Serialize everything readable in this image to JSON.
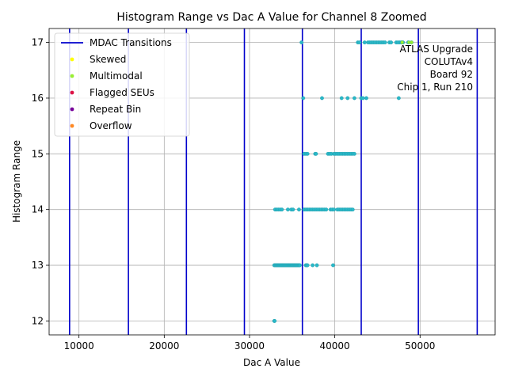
{
  "chart_data": {
    "type": "scatter",
    "title": "Histogram Range vs Dac A Value for Channel 8 Zoomed",
    "xlabel": "Dac A Value",
    "ylabel": "Histogram Range",
    "xlim": [
      6500,
      58800
    ],
    "ylim": [
      11.75,
      17.25
    ],
    "xticks": [
      10000,
      20000,
      30000,
      40000,
      50000
    ],
    "xtick_labels": [
      "10000",
      "20000",
      "30000",
      "40000",
      "50000"
    ],
    "yticks": [
      12,
      13,
      14,
      15,
      16,
      17
    ],
    "ytick_labels": [
      "12",
      "13",
      "14",
      "15",
      "16",
      "17"
    ],
    "grid": true,
    "legend_placement": "top-left",
    "mdac_transitions": {
      "name": "MDAC Transitions",
      "color": "#0000cc",
      "x": [
        8900,
        15800,
        22600,
        29400,
        36200,
        43100,
        49800,
        56700
      ]
    },
    "series": [
      {
        "name": "Data",
        "color": "#2ab8c8",
        "points": [
          [
            32900,
            12
          ],
          [
            32950,
            12
          ],
          [
            32900,
            13
          ],
          [
            33000,
            13
          ],
          [
            33100,
            13
          ],
          [
            33200,
            13
          ],
          [
            33300,
            13
          ],
          [
            33400,
            13
          ],
          [
            33500,
            13
          ],
          [
            33600,
            13
          ],
          [
            33700,
            13
          ],
          [
            33800,
            13
          ],
          [
            33900,
            13
          ],
          [
            34000,
            13
          ],
          [
            34100,
            13
          ],
          [
            34200,
            13
          ],
          [
            34300,
            13
          ],
          [
            34400,
            13
          ],
          [
            34500,
            13
          ],
          [
            34600,
            13
          ],
          [
            34700,
            13
          ],
          [
            34800,
            13
          ],
          [
            34900,
            13
          ],
          [
            35000,
            13
          ],
          [
            35100,
            13
          ],
          [
            35200,
            13
          ],
          [
            35300,
            13
          ],
          [
            35400,
            13
          ],
          [
            35500,
            13
          ],
          [
            35600,
            13
          ],
          [
            35700,
            13
          ],
          [
            35800,
            13
          ],
          [
            35900,
            13
          ],
          [
            36600,
            13
          ],
          [
            36700,
            13
          ],
          [
            36800,
            13
          ],
          [
            37400,
            13
          ],
          [
            37900,
            13
          ],
          [
            39800,
            13
          ],
          [
            33000,
            14
          ],
          [
            33200,
            14
          ],
          [
            33400,
            14
          ],
          [
            33600,
            14
          ],
          [
            33800,
            14
          ],
          [
            34500,
            14
          ],
          [
            34900,
            14
          ],
          [
            35100,
            14
          ],
          [
            35800,
            14
          ],
          [
            36400,
            14
          ],
          [
            36600,
            14
          ],
          [
            36800,
            14
          ],
          [
            37000,
            14
          ],
          [
            37200,
            14
          ],
          [
            37400,
            14
          ],
          [
            37600,
            14
          ],
          [
            37800,
            14
          ],
          [
            38000,
            14
          ],
          [
            38200,
            14
          ],
          [
            38400,
            14
          ],
          [
            38600,
            14
          ],
          [
            38800,
            14
          ],
          [
            39000,
            14
          ],
          [
            39500,
            14
          ],
          [
            39700,
            14
          ],
          [
            39900,
            14
          ],
          [
            40300,
            14
          ],
          [
            40500,
            14
          ],
          [
            40700,
            14
          ],
          [
            40900,
            14
          ],
          [
            41100,
            14
          ],
          [
            41300,
            14
          ],
          [
            41500,
            14
          ],
          [
            41700,
            14
          ],
          [
            41900,
            14
          ],
          [
            42100,
            14
          ],
          [
            36400,
            15
          ],
          [
            36600,
            15
          ],
          [
            36800,
            15
          ],
          [
            37700,
            15
          ],
          [
            37800,
            15
          ],
          [
            39200,
            15
          ],
          [
            39400,
            15
          ],
          [
            39600,
            15
          ],
          [
            39900,
            15
          ],
          [
            40100,
            15
          ],
          [
            40300,
            15
          ],
          [
            40500,
            15
          ],
          [
            40700,
            15
          ],
          [
            40900,
            15
          ],
          [
            41100,
            15
          ],
          [
            41300,
            15
          ],
          [
            41500,
            15
          ],
          [
            41700,
            15
          ],
          [
            41900,
            15
          ],
          [
            42100,
            15
          ],
          [
            42300,
            15
          ],
          [
            36300,
            16
          ],
          [
            38500,
            16
          ],
          [
            40800,
            16
          ],
          [
            41500,
            16
          ],
          [
            42300,
            16
          ],
          [
            43100,
            16
          ],
          [
            43300,
            16
          ],
          [
            43700,
            16
          ],
          [
            47500,
            16
          ],
          [
            36100,
            17
          ],
          [
            42700,
            17
          ],
          [
            42900,
            17
          ],
          [
            43500,
            17
          ],
          [
            43900,
            17
          ],
          [
            44100,
            17
          ],
          [
            44300,
            17
          ],
          [
            44500,
            17
          ],
          [
            44700,
            17
          ],
          [
            44900,
            17
          ],
          [
            45100,
            17
          ],
          [
            45300,
            17
          ],
          [
            45500,
            17
          ],
          [
            45700,
            17
          ],
          [
            45900,
            17
          ],
          [
            46400,
            17
          ],
          [
            46600,
            17
          ],
          [
            47200,
            17
          ],
          [
            47400,
            17
          ],
          [
            47600,
            17
          ],
          [
            47800,
            17
          ],
          [
            48000,
            17
          ],
          [
            48600,
            17
          ]
        ]
      },
      {
        "name": "Skewed",
        "color": "#ffff00",
        "points": []
      },
      {
        "name": "Multimodal",
        "color": "#99ee33",
        "points": [
          [
            47900,
            17
          ],
          [
            48700,
            17
          ],
          [
            49000,
            17
          ]
        ]
      },
      {
        "name": "Flagged SEUs",
        "color": "#dd1144",
        "points": []
      },
      {
        "name": "Repeat Bin",
        "color": "#770099",
        "points": []
      },
      {
        "name": "Overflow",
        "color": "#ff8822",
        "points": []
      }
    ],
    "legend": [
      {
        "label": "MDAC Transitions",
        "kind": "line",
        "color": "#0000cc"
      },
      {
        "label": "Skewed",
        "kind": "dot",
        "color": "#ffff00"
      },
      {
        "label": "Multimodal",
        "kind": "dot",
        "color": "#99ee33"
      },
      {
        "label": "Flagged SEUs",
        "kind": "dot",
        "color": "#dd1144"
      },
      {
        "label": "Repeat Bin",
        "kind": "dot",
        "color": "#770099"
      },
      {
        "label": "Overflow",
        "kind": "dot",
        "color": "#ff8822"
      }
    ],
    "annotation": [
      "ATLAS Upgrade",
      "COLUTAv4",
      "Board 92",
      "Chip 1, Run 210"
    ]
  }
}
